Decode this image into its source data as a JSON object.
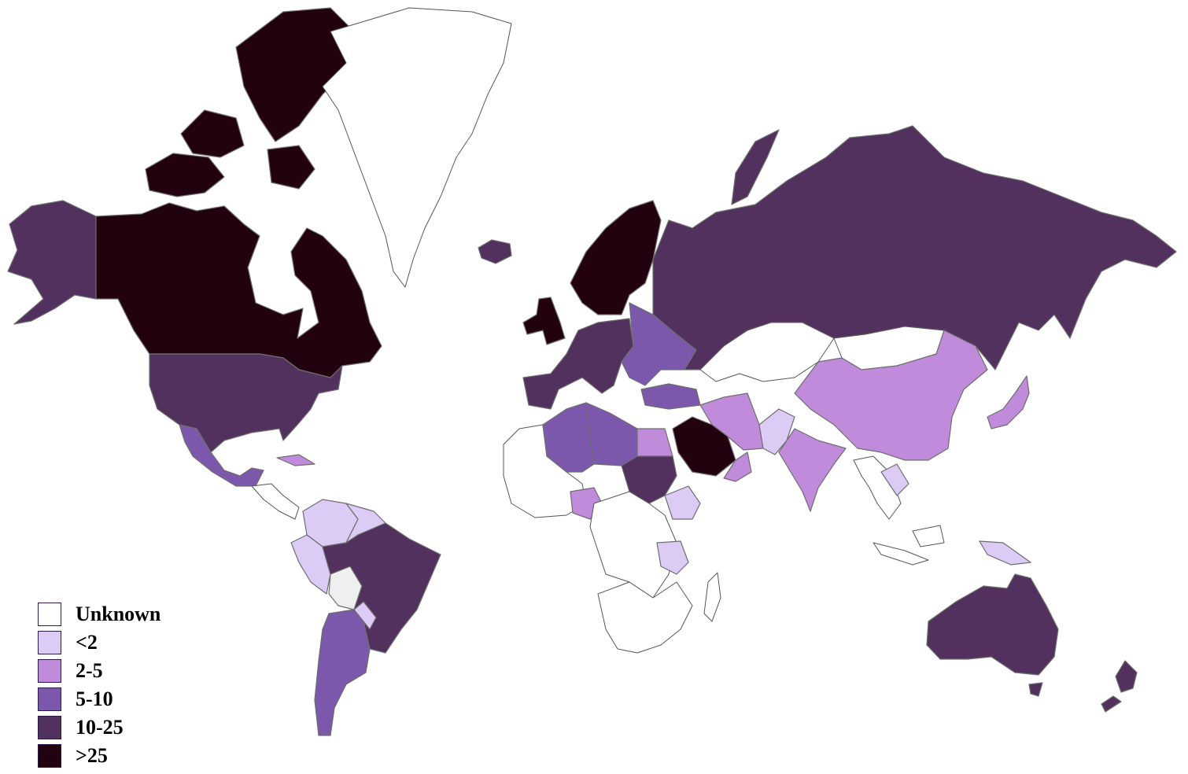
{
  "colors": {
    "unknown": "#ffffff",
    "lt2": "#dccbf5",
    "c2to5": "#c18bdb",
    "c5to10": "#7b58ab",
    "c10to25": "#52315f",
    "gt25": "#23020f",
    "na": "#efefef"
  },
  "legend": [
    {
      "label": "Unknown",
      "color": "#ffffff"
    },
    {
      "label": "<2",
      "color": "#dccbf5"
    },
    {
      "label": "2-5",
      "color": "#c18bdb"
    },
    {
      "label": "5-10",
      "color": "#7b58ab"
    },
    {
      "label": "10-25",
      "color": "#52315f"
    },
    {
      "label": ">25",
      "color": "#23020f"
    }
  ],
  "regions": [
    {
      "name": "canada",
      "category": "gt25"
    },
    {
      "name": "canadian-arctic-islands",
      "category": "gt25"
    },
    {
      "name": "alaska",
      "category": "c10to25"
    },
    {
      "name": "united-states",
      "category": "c10to25"
    },
    {
      "name": "mexico",
      "category": "c5to10"
    },
    {
      "name": "greenland",
      "category": "unknown"
    },
    {
      "name": "iceland",
      "category": "c10to25"
    },
    {
      "name": "united-kingdom",
      "category": "gt25"
    },
    {
      "name": "scandinavia",
      "category": "gt25"
    },
    {
      "name": "western-europe",
      "category": "c10to25"
    },
    {
      "name": "eastern-europe",
      "category": "c5to10"
    },
    {
      "name": "russia",
      "category": "c10to25"
    },
    {
      "name": "china",
      "category": "c2to5"
    },
    {
      "name": "india",
      "category": "c2to5"
    },
    {
      "name": "iran",
      "category": "c2to5"
    },
    {
      "name": "saudi-arabia",
      "category": "gt25"
    },
    {
      "name": "egypt",
      "category": "c2to5"
    },
    {
      "name": "algeria",
      "category": "c5to10"
    },
    {
      "name": "libya",
      "category": "c5to10"
    },
    {
      "name": "sudan",
      "category": "c10to25"
    },
    {
      "name": "nigeria",
      "category": "c2to5"
    },
    {
      "name": "ethiopia",
      "category": "lt2"
    },
    {
      "name": "brazil",
      "category": "c10to25"
    },
    {
      "name": "argentina",
      "category": "c5to10"
    },
    {
      "name": "colombia",
      "category": "lt2"
    },
    {
      "name": "australia",
      "category": "c10to25"
    },
    {
      "name": "new-zealand",
      "category": "c10to25"
    },
    {
      "name": "japan",
      "category": "c2to5"
    }
  ]
}
